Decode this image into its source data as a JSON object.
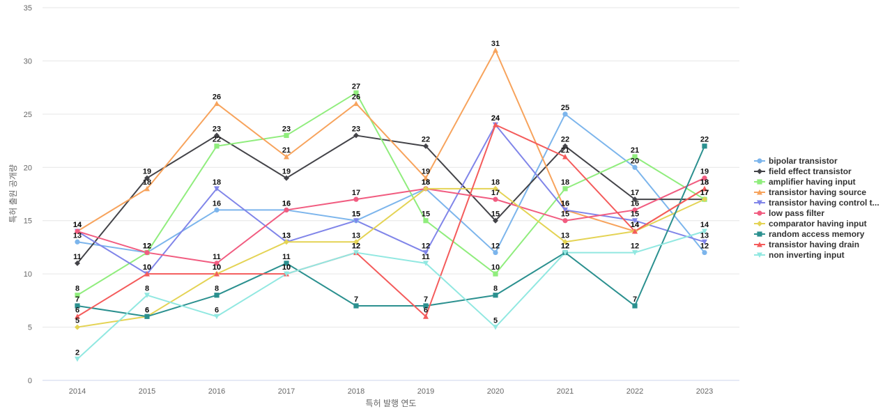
{
  "chart_data": {
    "type": "line",
    "xlabel": "특허 발행 연도",
    "ylabel": "특허 출원 공개량",
    "ylim": [
      0,
      35
    ],
    "yticks": [
      0,
      5,
      10,
      15,
      20,
      25,
      30,
      35
    ],
    "grid": true,
    "legend_position": "right",
    "categories": [
      "2014",
      "2015",
      "2016",
      "2017",
      "2018",
      "2019",
      "2020",
      "2021",
      "2022",
      "2023"
    ],
    "series": [
      {
        "name": "bipolar transistor",
        "color": "#7cb5ec",
        "marker": "circle",
        "values": [
          13,
          12,
          16,
          16,
          15,
          18,
          12,
          25,
          20,
          12
        ]
      },
      {
        "name": "field effect transistor",
        "color": "#434348",
        "marker": "diamond",
        "values": [
          11,
          19,
          23,
          19,
          23,
          22,
          15,
          22,
          17,
          17
        ]
      },
      {
        "name": "amplifier having input",
        "color": "#90ed7d",
        "marker": "square",
        "values": [
          8,
          12,
          22,
          23,
          27,
          15,
          10,
          18,
          21,
          17
        ]
      },
      {
        "name": "transistor having source",
        "color": "#f7a35c",
        "marker": "triangle",
        "values": [
          14,
          18,
          26,
          21,
          26,
          19,
          31,
          16,
          14,
          18
        ]
      },
      {
        "name": "transistor having control t...",
        "color": "#8085e9",
        "marker": "triangle-down",
        "values": [
          14,
          10,
          18,
          13,
          15,
          12,
          24,
          16,
          15,
          13
        ]
      },
      {
        "name": "low pass filter",
        "color": "#f15c80",
        "marker": "circle",
        "values": [
          14,
          12,
          11,
          16,
          17,
          18,
          17,
          15,
          16,
          19
        ]
      },
      {
        "name": "comparator having input",
        "color": "#e4d354",
        "marker": "diamond",
        "values": [
          5,
          6,
          10,
          13,
          13,
          18,
          18,
          13,
          14,
          17
        ]
      },
      {
        "name": "random access memory",
        "color": "#2b908f",
        "marker": "square",
        "values": [
          7,
          6,
          8,
          11,
          7,
          7,
          8,
          12,
          7,
          22
        ]
      },
      {
        "name": "transistor having drain",
        "color": "#f45b5b",
        "marker": "triangle",
        "values": [
          6,
          10,
          10,
          10,
          12,
          6,
          24,
          21,
          14,
          18
        ]
      },
      {
        "name": "non inverting input",
        "color": "#91e8e1",
        "marker": "triangle-down",
        "values": [
          2,
          8,
          6,
          10,
          12,
          11,
          5,
          12,
          12,
          14
        ]
      }
    ]
  }
}
